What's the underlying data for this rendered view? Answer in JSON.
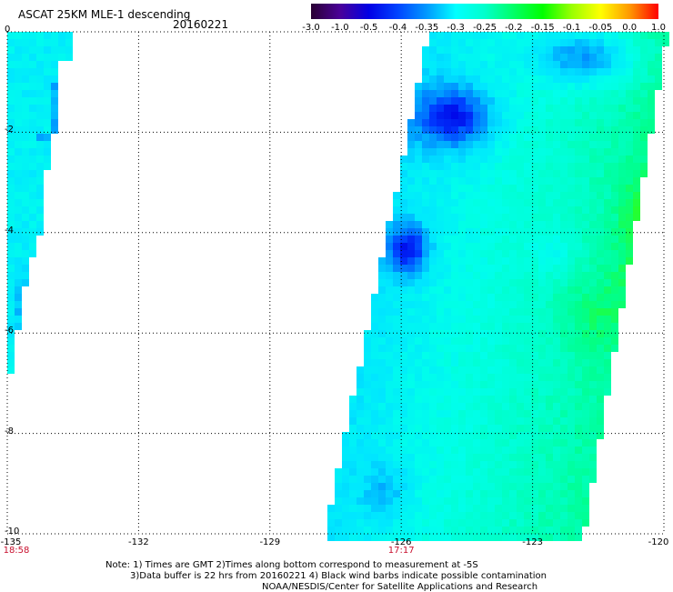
{
  "header": {
    "title": "ASCAT 25KM MLE-1 descending",
    "date": "20160221"
  },
  "colorbar": {
    "labels": [
      "-3.0",
      "-1.0",
      "-0.5",
      "-0.4",
      "-0.35",
      "-0.3",
      "-0.25",
      "-0.2",
      "-0.15",
      "-0.1",
      "-0.05",
      "0.0",
      "1.0"
    ],
    "colors": [
      "#2a0033",
      "#4a0099",
      "#0000e6",
      "#0044ff",
      "#0099ff",
      "#00ffff",
      "#00ffcc",
      "#00ff66",
      "#00ff00",
      "#99ff00",
      "#ffff00",
      "#ff9900",
      "#ff0000"
    ]
  },
  "axes": {
    "y_labels": [
      "0",
      "-2",
      "-4",
      "-6",
      "-8",
      "-10"
    ],
    "x_labels": [
      "-135",
      "-132",
      "-129",
      "-126",
      "-123",
      "-120"
    ],
    "x_range": [
      -135,
      -120
    ],
    "y_range": [
      0,
      -10
    ],
    "times": [
      {
        "lon": -135,
        "text": "18:58"
      },
      {
        "lon": -126,
        "text": "17:17"
      }
    ]
  },
  "chart_data": {
    "type": "heatmap",
    "title": "ASCAT 25KM MLE-1 descending",
    "date": "20160221",
    "x_range": [
      -135,
      -120
    ],
    "y_range": [
      0,
      -10
    ],
    "swaths": [
      {
        "name": "west",
        "lon_min": -135,
        "lon_max": -133.7,
        "typical_value": -0.3
      },
      {
        "name": "east",
        "lon_min": -128.2,
        "lon_max": -120.2,
        "typical_value": -0.25
      }
    ],
    "grid": true
  },
  "notes": [
    "Note: 1) Times are GMT 2)Times along bottom correspond to measurement at -5S",
    "3)Data buffer is 22 hrs from 20160221 4) Black wind barbs indicate possible contamination",
    "NOAA/NESDIS/Center for Satellite Applications and Research"
  ]
}
